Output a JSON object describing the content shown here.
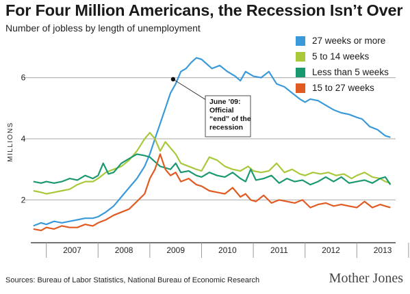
{
  "chart_data": {
    "type": "line",
    "title": "For Four Million Americans, the Recession Isn’t Over",
    "subtitle": "Number of jobless by length of unemployment",
    "ylabel": "MILLIONS",
    "xlabel": "",
    "ylim": [
      0.6,
      7.2
    ],
    "yticks": [
      2,
      4,
      6
    ],
    "xticks": [
      "2007",
      "2008",
      "2009",
      "2010",
      "2011",
      "2012",
      "2013"
    ],
    "xlim": [
      2006.7,
      2013.75
    ],
    "grid": true,
    "legend": "top-right",
    "annotation": {
      "lines": [
        "June ’09:",
        "Official",
        "“end” of the",
        "recession"
      ],
      "x": 2009.45,
      "y": 5.95
    },
    "series": [
      {
        "name": "27 weeks or more",
        "color": "#3a9ad9",
        "points": [
          [
            2006.75,
            1.15
          ],
          [
            2006.9,
            1.25
          ],
          [
            2007.0,
            1.2
          ],
          [
            2007.15,
            1.3
          ],
          [
            2007.3,
            1.25
          ],
          [
            2007.45,
            1.3
          ],
          [
            2007.6,
            1.35
          ],
          [
            2007.75,
            1.4
          ],
          [
            2007.9,
            1.4
          ],
          [
            2008.0,
            1.45
          ],
          [
            2008.15,
            1.6
          ],
          [
            2008.3,
            1.8
          ],
          [
            2008.45,
            2.1
          ],
          [
            2008.6,
            2.4
          ],
          [
            2008.75,
            2.7
          ],
          [
            2008.9,
            3.1
          ],
          [
            2009.0,
            3.5
          ],
          [
            2009.1,
            4.0
          ],
          [
            2009.2,
            4.5
          ],
          [
            2009.3,
            5.0
          ],
          [
            2009.4,
            5.5
          ],
          [
            2009.5,
            5.8
          ],
          [
            2009.6,
            6.2
          ],
          [
            2009.7,
            6.3
          ],
          [
            2009.8,
            6.5
          ],
          [
            2009.9,
            6.65
          ],
          [
            2010.0,
            6.6
          ],
          [
            2010.1,
            6.45
          ],
          [
            2010.2,
            6.3
          ],
          [
            2010.35,
            6.4
          ],
          [
            2010.5,
            6.2
          ],
          [
            2010.65,
            6.05
          ],
          [
            2010.75,
            5.9
          ],
          [
            2010.85,
            6.2
          ],
          [
            2011.0,
            6.05
          ],
          [
            2011.15,
            6.0
          ],
          [
            2011.3,
            6.2
          ],
          [
            2011.45,
            5.8
          ],
          [
            2011.6,
            5.7
          ],
          [
            2011.75,
            5.5
          ],
          [
            2011.9,
            5.3
          ],
          [
            2012.0,
            5.2
          ],
          [
            2012.1,
            5.3
          ],
          [
            2012.25,
            5.25
          ],
          [
            2012.4,
            5.1
          ],
          [
            2012.55,
            4.95
          ],
          [
            2012.7,
            4.85
          ],
          [
            2012.85,
            4.8
          ],
          [
            2013.0,
            4.7
          ],
          [
            2013.1,
            4.65
          ],
          [
            2013.25,
            4.4
          ],
          [
            2013.4,
            4.3
          ],
          [
            2013.55,
            4.1
          ],
          [
            2013.65,
            4.05
          ]
        ]
      },
      {
        "name": "5 to 14 weeks",
        "color": "#a9c83a",
        "points": [
          [
            2006.75,
            2.3
          ],
          [
            2006.9,
            2.25
          ],
          [
            2007.0,
            2.2
          ],
          [
            2007.15,
            2.25
          ],
          [
            2007.3,
            2.3
          ],
          [
            2007.45,
            2.35
          ],
          [
            2007.6,
            2.5
          ],
          [
            2007.75,
            2.6
          ],
          [
            2007.9,
            2.6
          ],
          [
            2008.0,
            2.7
          ],
          [
            2008.15,
            2.9
          ],
          [
            2008.3,
            3.0
          ],
          [
            2008.45,
            3.1
          ],
          [
            2008.6,
            3.3
          ],
          [
            2008.75,
            3.6
          ],
          [
            2008.9,
            4.0
          ],
          [
            2009.0,
            4.2
          ],
          [
            2009.1,
            4.0
          ],
          [
            2009.2,
            3.6
          ],
          [
            2009.3,
            3.9
          ],
          [
            2009.4,
            3.7
          ],
          [
            2009.5,
            3.5
          ],
          [
            2009.6,
            3.2
          ],
          [
            2009.75,
            3.1
          ],
          [
            2009.9,
            3.0
          ],
          [
            2010.0,
            2.95
          ],
          [
            2010.15,
            3.4
          ],
          [
            2010.3,
            3.3
          ],
          [
            2010.45,
            3.1
          ],
          [
            2010.6,
            3.0
          ],
          [
            2010.75,
            2.95
          ],
          [
            2010.9,
            3.1
          ],
          [
            2011.0,
            2.95
          ],
          [
            2011.15,
            2.9
          ],
          [
            2011.3,
            2.95
          ],
          [
            2011.45,
            3.2
          ],
          [
            2011.6,
            2.9
          ],
          [
            2011.75,
            3.0
          ],
          [
            2011.9,
            2.85
          ],
          [
            2012.0,
            2.8
          ],
          [
            2012.15,
            2.9
          ],
          [
            2012.3,
            2.85
          ],
          [
            2012.45,
            2.9
          ],
          [
            2012.6,
            2.8
          ],
          [
            2012.75,
            2.85
          ],
          [
            2012.9,
            2.7
          ],
          [
            2013.0,
            2.8
          ],
          [
            2013.15,
            2.9
          ],
          [
            2013.3,
            2.75
          ],
          [
            2013.45,
            2.7
          ],
          [
            2013.55,
            2.6
          ],
          [
            2013.65,
            2.55
          ]
        ]
      },
      {
        "name": "Less than 5 weeks",
        "color": "#1a9870",
        "points": [
          [
            2006.75,
            2.6
          ],
          [
            2006.9,
            2.55
          ],
          [
            2007.0,
            2.6
          ],
          [
            2007.15,
            2.55
          ],
          [
            2007.3,
            2.6
          ],
          [
            2007.45,
            2.7
          ],
          [
            2007.6,
            2.65
          ],
          [
            2007.75,
            2.8
          ],
          [
            2007.9,
            2.7
          ],
          [
            2008.0,
            2.8
          ],
          [
            2008.1,
            3.2
          ],
          [
            2008.2,
            2.85
          ],
          [
            2008.3,
            2.9
          ],
          [
            2008.45,
            3.2
          ],
          [
            2008.6,
            3.35
          ],
          [
            2008.75,
            3.5
          ],
          [
            2008.9,
            3.45
          ],
          [
            2009.0,
            3.4
          ],
          [
            2009.1,
            3.25
          ],
          [
            2009.2,
            3.1
          ],
          [
            2009.3,
            3.05
          ],
          [
            2009.4,
            3.0
          ],
          [
            2009.5,
            3.2
          ],
          [
            2009.6,
            2.9
          ],
          [
            2009.75,
            2.95
          ],
          [
            2009.9,
            2.8
          ],
          [
            2010.0,
            2.75
          ],
          [
            2010.15,
            2.9
          ],
          [
            2010.3,
            2.8
          ],
          [
            2010.45,
            2.75
          ],
          [
            2010.6,
            2.9
          ],
          [
            2010.75,
            2.7
          ],
          [
            2010.85,
            2.6
          ],
          [
            2010.95,
            3.0
          ],
          [
            2011.05,
            2.65
          ],
          [
            2011.2,
            2.7
          ],
          [
            2011.35,
            2.8
          ],
          [
            2011.5,
            2.55
          ],
          [
            2011.65,
            2.7
          ],
          [
            2011.8,
            2.6
          ],
          [
            2011.95,
            2.65
          ],
          [
            2012.1,
            2.5
          ],
          [
            2012.25,
            2.6
          ],
          [
            2012.4,
            2.75
          ],
          [
            2012.55,
            2.6
          ],
          [
            2012.7,
            2.75
          ],
          [
            2012.85,
            2.55
          ],
          [
            2013.0,
            2.6
          ],
          [
            2013.15,
            2.65
          ],
          [
            2013.3,
            2.55
          ],
          [
            2013.45,
            2.7
          ],
          [
            2013.55,
            2.75
          ],
          [
            2013.65,
            2.5
          ]
        ]
      },
      {
        "name": "15 to 27 weeks",
        "color": "#e05a22",
        "points": [
          [
            2006.75,
            1.05
          ],
          [
            2006.9,
            1.0
          ],
          [
            2007.0,
            1.1
          ],
          [
            2007.15,
            1.05
          ],
          [
            2007.3,
            1.15
          ],
          [
            2007.45,
            1.1
          ],
          [
            2007.6,
            1.1
          ],
          [
            2007.75,
            1.2
          ],
          [
            2007.9,
            1.15
          ],
          [
            2008.0,
            1.25
          ],
          [
            2008.15,
            1.35
          ],
          [
            2008.3,
            1.5
          ],
          [
            2008.45,
            1.6
          ],
          [
            2008.6,
            1.7
          ],
          [
            2008.75,
            1.95
          ],
          [
            2008.9,
            2.2
          ],
          [
            2009.0,
            2.7
          ],
          [
            2009.1,
            3.0
          ],
          [
            2009.2,
            3.5
          ],
          [
            2009.3,
            3.0
          ],
          [
            2009.4,
            2.8
          ],
          [
            2009.5,
            2.9
          ],
          [
            2009.6,
            2.6
          ],
          [
            2009.75,
            2.7
          ],
          [
            2009.9,
            2.5
          ],
          [
            2010.0,
            2.45
          ],
          [
            2010.15,
            2.3
          ],
          [
            2010.3,
            2.25
          ],
          [
            2010.45,
            2.2
          ],
          [
            2010.6,
            2.4
          ],
          [
            2010.75,
            2.1
          ],
          [
            2010.85,
            2.2
          ],
          [
            2010.95,
            2.0
          ],
          [
            2011.05,
            1.95
          ],
          [
            2011.2,
            2.15
          ],
          [
            2011.35,
            1.9
          ],
          [
            2011.5,
            2.0
          ],
          [
            2011.65,
            1.95
          ],
          [
            2011.8,
            1.9
          ],
          [
            2011.95,
            2.0
          ],
          [
            2012.1,
            1.75
          ],
          [
            2012.25,
            1.85
          ],
          [
            2012.4,
            1.9
          ],
          [
            2012.55,
            1.8
          ],
          [
            2012.7,
            1.85
          ],
          [
            2012.85,
            1.8
          ],
          [
            2013.0,
            1.75
          ],
          [
            2013.15,
            1.95
          ],
          [
            2013.3,
            1.75
          ],
          [
            2013.45,
            1.85
          ],
          [
            2013.55,
            1.8
          ],
          [
            2013.65,
            1.75
          ]
        ]
      }
    ]
  },
  "footer": {
    "source": "Sources: Bureau of Labor Statistics, National Bureau of Economic Research",
    "brand": "Mother Jones"
  }
}
